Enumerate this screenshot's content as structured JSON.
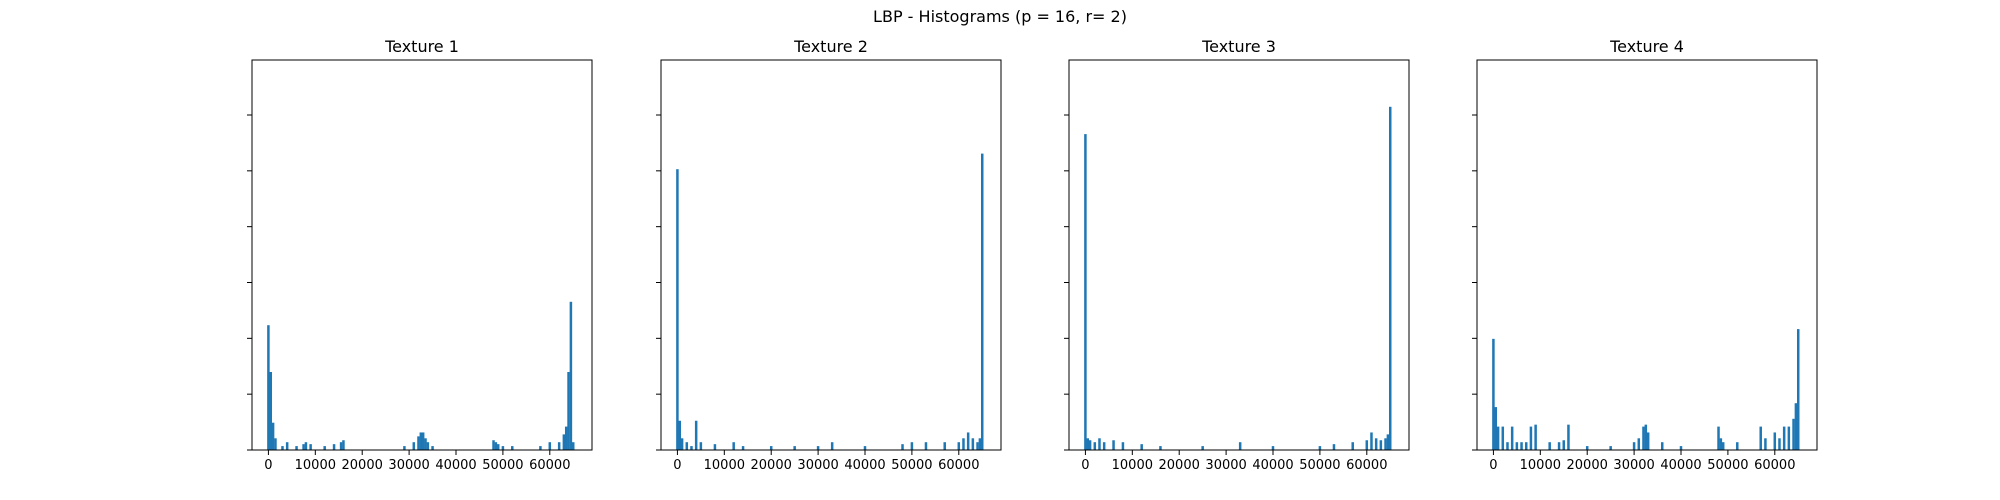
{
  "figure": {
    "suptitle": "LBP - Histograms (p = 16, r= 2)",
    "bar_color": "#1f77b4"
  },
  "chart_data": [
    {
      "type": "bar",
      "title": "Texture 1",
      "xlabel": "",
      "ylabel": "",
      "xlim": [
        -3500,
        69000
      ],
      "ylim": [
        0,
        1
      ],
      "x_ticks": [
        0,
        10000,
        20000,
        30000,
        40000,
        50000,
        60000
      ],
      "x_tick_labels": [
        "0",
        "10000",
        "20000",
        "30000",
        "40000",
        "50000",
        "60000"
      ],
      "y_tick_count": 7,
      "y_tick_labels_visible": false,
      "x": [
        0,
        500,
        1000,
        1500,
        3000,
        4000,
        6000,
        7500,
        8000,
        9000,
        12000,
        14000,
        15500,
        16000,
        29000,
        31000,
        32000,
        32500,
        33000,
        33500,
        34000,
        35000,
        48000,
        48500,
        49000,
        50000,
        52000,
        58000,
        60000,
        62000,
        63000,
        63500,
        64000,
        64500,
        65000
      ],
      "values": [
        0.32,
        0.2,
        0.07,
        0.03,
        0.01,
        0.02,
        0.01,
        0.015,
        0.02,
        0.015,
        0.01,
        0.015,
        0.02,
        0.025,
        0.01,
        0.02,
        0.035,
        0.045,
        0.045,
        0.03,
        0.02,
        0.01,
        0.025,
        0.02,
        0.015,
        0.01,
        0.01,
        0.01,
        0.02,
        0.02,
        0.04,
        0.06,
        0.2,
        0.38,
        0.02
      ]
    },
    {
      "type": "bar",
      "title": "Texture 2",
      "xlabel": "",
      "ylabel": "",
      "xlim": [
        -3500,
        69000
      ],
      "ylim": [
        0,
        1
      ],
      "x_ticks": [
        0,
        10000,
        20000,
        30000,
        40000,
        50000,
        60000
      ],
      "x_tick_labels": [
        "0",
        "10000",
        "20000",
        "30000",
        "40000",
        "50000",
        "60000"
      ],
      "y_tick_count": 7,
      "y_tick_labels_visible": false,
      "x": [
        0,
        500,
        1000,
        2000,
        3000,
        4000,
        5000,
        8000,
        12000,
        14000,
        20000,
        25000,
        30000,
        33000,
        40000,
        48000,
        50000,
        53000,
        57000,
        60000,
        61000,
        62000,
        63000,
        64000,
        64500,
        65000
      ],
      "values": [
        0.72,
        0.075,
        0.03,
        0.02,
        0.01,
        0.075,
        0.02,
        0.015,
        0.02,
        0.01,
        0.01,
        0.01,
        0.01,
        0.02,
        0.01,
        0.015,
        0.02,
        0.02,
        0.02,
        0.02,
        0.03,
        0.045,
        0.03,
        0.02,
        0.03,
        0.76
      ]
    },
    {
      "type": "bar",
      "title": "Texture 3",
      "xlabel": "",
      "ylabel": "",
      "xlim": [
        -3500,
        69000
      ],
      "ylim": [
        0,
        1
      ],
      "x_ticks": [
        0,
        10000,
        20000,
        30000,
        40000,
        50000,
        60000
      ],
      "x_tick_labels": [
        "0",
        "10000",
        "20000",
        "30000",
        "40000",
        "50000",
        "60000"
      ],
      "y_tick_count": 7,
      "y_tick_labels_visible": false,
      "x": [
        0,
        500,
        1000,
        2000,
        3000,
        4000,
        6000,
        8000,
        12000,
        16000,
        25000,
        33000,
        40000,
        50000,
        53000,
        57000,
        60000,
        61000,
        62000,
        63000,
        64000,
        64500,
        65000
      ],
      "values": [
        0.81,
        0.03,
        0.025,
        0.02,
        0.03,
        0.02,
        0.025,
        0.02,
        0.015,
        0.01,
        0.01,
        0.02,
        0.01,
        0.01,
        0.015,
        0.02,
        0.025,
        0.045,
        0.03,
        0.025,
        0.03,
        0.04,
        0.88
      ]
    },
    {
      "type": "bar",
      "title": "Texture 4",
      "xlabel": "",
      "ylabel": "",
      "xlim": [
        -3500,
        69000
      ],
      "ylim": [
        0,
        1
      ],
      "x_ticks": [
        0,
        10000,
        20000,
        30000,
        40000,
        50000,
        60000
      ],
      "x_tick_labels": [
        "0",
        "10000",
        "20000",
        "30000",
        "40000",
        "50000",
        "60000"
      ],
      "y_tick_count": 7,
      "y_tick_labels_visible": false,
      "x": [
        0,
        500,
        1000,
        2000,
        3000,
        4000,
        5000,
        6000,
        7000,
        8000,
        9000,
        12000,
        14000,
        15000,
        16000,
        20000,
        25000,
        30000,
        31000,
        32000,
        32500,
        33000,
        36000,
        40000,
        48000,
        48500,
        49000,
        52000,
        57000,
        58000,
        60000,
        61000,
        62000,
        63000,
        64000,
        64500,
        65000
      ],
      "values": [
        0.285,
        0.11,
        0.06,
        0.06,
        0.02,
        0.06,
        0.02,
        0.02,
        0.02,
        0.06,
        0.065,
        0.02,
        0.02,
        0.025,
        0.065,
        0.01,
        0.01,
        0.02,
        0.03,
        0.06,
        0.065,
        0.045,
        0.02,
        0.01,
        0.06,
        0.03,
        0.02,
        0.02,
        0.06,
        0.03,
        0.045,
        0.03,
        0.06,
        0.06,
        0.08,
        0.12,
        0.31
      ]
    }
  ]
}
